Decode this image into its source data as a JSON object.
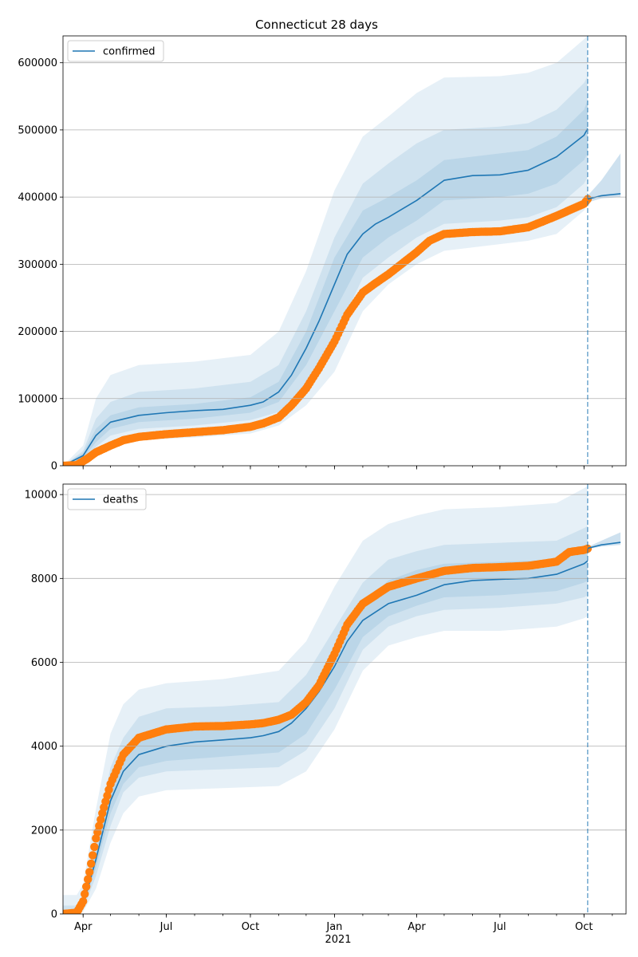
{
  "chart_data": [
    {
      "type": "line",
      "title": "Connecticut 28 days",
      "xlabel": "",
      "ylabel": "",
      "ylim": [
        0,
        640000
      ],
      "yticks": [
        0,
        100000,
        200000,
        300000,
        400000,
        500000,
        600000
      ],
      "ytick_labels": [
        "0",
        "100000",
        "200000",
        "300000",
        "400000",
        "500000",
        "600000"
      ],
      "grid": "horizontal",
      "legend": {
        "placement": "upper-left",
        "entries": [
          "confirmed"
        ]
      },
      "colors": {
        "model": "#1f77b4",
        "observed": "#ff7f0e"
      },
      "series": [
        {
          "name": "confirmed",
          "kind": "model-median",
          "x": [
            "2020-03-10",
            "2020-04-01",
            "2020-04-15",
            "2020-05-01",
            "2020-06-01",
            "2020-07-01",
            "2020-08-01",
            "2020-09-01",
            "2020-10-01",
            "2020-10-15",
            "2020-11-01",
            "2020-11-15",
            "2020-12-01",
            "2020-12-15",
            "2021-01-01",
            "2021-01-15",
            "2021-02-01",
            "2021-02-15",
            "2021-03-01",
            "2021-04-01",
            "2021-05-01",
            "2021-06-01",
            "2021-07-01",
            "2021-08-01",
            "2021-09-01",
            "2021-10-01",
            "2021-10-05"
          ],
          "y": [
            0,
            15000,
            45000,
            65000,
            75000,
            79000,
            82000,
            84000,
            90000,
            95000,
            110000,
            135000,
            175000,
            215000,
            270000,
            315000,
            345000,
            360000,
            370000,
            395000,
            425000,
            432000,
            433000,
            440000,
            460000,
            492000,
            502000
          ]
        },
        {
          "name": "",
          "kind": "observed",
          "x": [
            "2020-03-10",
            "2020-03-25",
            "2020-04-05",
            "2020-04-15",
            "2020-05-01",
            "2020-05-15",
            "2020-06-01",
            "2020-07-01",
            "2020-08-01",
            "2020-09-01",
            "2020-10-01",
            "2020-10-15",
            "2020-11-01",
            "2020-11-15",
            "2020-12-01",
            "2020-12-15",
            "2021-01-01",
            "2021-01-15",
            "2021-02-01",
            "2021-02-15",
            "2021-03-01",
            "2021-04-01",
            "2021-04-15",
            "2021-05-01",
            "2021-06-01",
            "2021-07-01",
            "2021-08-01",
            "2021-09-01",
            "2021-10-01",
            "2021-10-05"
          ],
          "y": [
            0,
            1000,
            10000,
            20000,
            30000,
            38000,
            43000,
            47000,
            50000,
            53000,
            58000,
            63000,
            72000,
            90000,
            115000,
            145000,
            185000,
            225000,
            258000,
            272000,
            285000,
            318000,
            335000,
            345000,
            348000,
            349000,
            355000,
            372000,
            390000,
            397000
          ]
        },
        {
          "name": "",
          "kind": "forecast",
          "x": [
            "2021-10-05",
            "2021-10-20",
            "2021-11-10"
          ],
          "y": [
            397000,
            402000,
            405000
          ]
        }
      ],
      "bands": [
        {
          "level": "outer",
          "x": [
            "2020-03-10",
            "2020-04-01",
            "2020-04-15",
            "2020-05-01",
            "2020-06-01",
            "2020-08-01",
            "2020-10-01",
            "2020-11-01",
            "2020-12-01",
            "2021-01-01",
            "2021-02-01",
            "2021-03-01",
            "2021-04-01",
            "2021-05-01",
            "2021-07-01",
            "2021-08-01",
            "2021-09-01",
            "2021-10-01",
            "2021-10-05"
          ],
          "low": [
            0,
            4000,
            18000,
            30000,
            38000,
            42000,
            48000,
            60000,
            90000,
            140000,
            230000,
            270000,
            300000,
            320000,
            330000,
            335000,
            345000,
            380000,
            390000
          ],
          "high": [
            0,
            30000,
            100000,
            135000,
            150000,
            155000,
            165000,
            200000,
            290000,
            410000,
            490000,
            520000,
            555000,
            578000,
            580000,
            585000,
            600000,
            635000,
            640000
          ]
        },
        {
          "level": "middle",
          "x": [
            "2020-03-10",
            "2020-04-01",
            "2020-04-15",
            "2020-05-01",
            "2020-06-01",
            "2020-08-01",
            "2020-10-01",
            "2020-11-01",
            "2020-12-01",
            "2021-01-01",
            "2021-02-01",
            "2021-03-01",
            "2021-04-01",
            "2021-05-01",
            "2021-07-01",
            "2021-08-01",
            "2021-09-01",
            "2021-10-01",
            "2021-10-05"
          ],
          "low": [
            0,
            8000,
            28000,
            45000,
            55000,
            60000,
            68000,
            80000,
            120000,
            190000,
            280000,
            310000,
            340000,
            360000,
            365000,
            370000,
            385000,
            420000,
            430000
          ],
          "high": [
            0,
            22000,
            70000,
            95000,
            110000,
            115000,
            125000,
            150000,
            230000,
            340000,
            420000,
            450000,
            480000,
            500000,
            505000,
            510000,
            530000,
            570000,
            580000
          ]
        },
        {
          "level": "inner",
          "x": [
            "2020-03-10",
            "2020-04-01",
            "2020-04-15",
            "2020-05-01",
            "2020-06-01",
            "2020-08-01",
            "2020-10-01",
            "2020-11-01",
            "2020-12-01",
            "2021-01-01",
            "2021-02-01",
            "2021-03-01",
            "2021-04-01",
            "2021-05-01",
            "2021-07-01",
            "2021-08-01",
            "2021-09-01",
            "2021-10-01",
            "2021-10-05"
          ],
          "low": [
            0,
            11000,
            35000,
            55000,
            65000,
            70000,
            79000,
            95000,
            150000,
            230000,
            310000,
            340000,
            365000,
            395000,
            400000,
            405000,
            420000,
            455000,
            465000
          ],
          "high": [
            0,
            19000,
            55000,
            75000,
            87000,
            92000,
            102000,
            125000,
            200000,
            310000,
            380000,
            400000,
            425000,
            455000,
            465000,
            470000,
            490000,
            530000,
            545000
          ]
        },
        {
          "level": "forecast",
          "x": [
            "2021-10-05",
            "2021-10-20",
            "2021-11-10"
          ],
          "low": [
            392000,
            398000,
            400000
          ],
          "high": [
            402000,
            425000,
            465000
          ]
        }
      ],
      "vline": "2021-10-05"
    },
    {
      "type": "line",
      "title": "",
      "xlabel": "",
      "ylabel": "",
      "ylim": [
        0,
        10250
      ],
      "yticks": [
        0,
        2000,
        4000,
        6000,
        8000,
        10000
      ],
      "ytick_labels": [
        "0",
        "2000",
        "4000",
        "6000",
        "8000",
        "10000"
      ],
      "grid": "horizontal",
      "legend": {
        "placement": "upper-left",
        "entries": [
          "deaths"
        ]
      },
      "colors": {
        "model": "#1f77b4",
        "observed": "#ff7f0e"
      },
      "xticks": [
        "2020-04-01",
        "2020-07-01",
        "2020-10-01",
        "2021-01-01",
        "2021-04-01",
        "2021-07-01",
        "2021-10-01"
      ],
      "xtick_labels": [
        "Apr",
        "Jul",
        "Oct",
        "Jan",
        "Apr",
        "Jul",
        "Oct"
      ],
      "xsub_label": "2021",
      "series": [
        {
          "name": "deaths",
          "kind": "model-median",
          "x": [
            "2020-03-10",
            "2020-03-25",
            "2020-04-01",
            "2020-04-15",
            "2020-05-01",
            "2020-05-15",
            "2020-06-01",
            "2020-07-01",
            "2020-08-01",
            "2020-09-01",
            "2020-10-01",
            "2020-10-15",
            "2020-11-01",
            "2020-11-15",
            "2020-12-01",
            "2020-12-15",
            "2021-01-01",
            "2021-01-15",
            "2021-02-01",
            "2021-03-01",
            "2021-04-01",
            "2021-05-01",
            "2021-06-01",
            "2021-07-01",
            "2021-08-01",
            "2021-09-01",
            "2021-10-01",
            "2021-10-05"
          ],
          "y": [
            0,
            20,
            200,
            1300,
            2700,
            3400,
            3800,
            4000,
            4100,
            4150,
            4200,
            4250,
            4350,
            4550,
            4900,
            5300,
            5900,
            6500,
            7000,
            7400,
            7600,
            7850,
            7950,
            7980,
            8000,
            8100,
            8350,
            8420
          ]
        },
        {
          "name": "",
          "kind": "observed",
          "x": [
            "2020-03-10",
            "2020-03-25",
            "2020-04-01",
            "2020-04-08",
            "2020-04-15",
            "2020-04-22",
            "2020-05-01",
            "2020-05-15",
            "2020-06-01",
            "2020-07-01",
            "2020-08-01",
            "2020-09-01",
            "2020-10-01",
            "2020-10-15",
            "2020-11-01",
            "2020-11-15",
            "2020-12-01",
            "2020-12-15",
            "2021-01-01",
            "2021-01-15",
            "2021-02-01",
            "2021-03-01",
            "2021-04-01",
            "2021-05-01",
            "2021-06-01",
            "2021-07-01",
            "2021-08-01",
            "2021-09-01",
            "2021-09-15",
            "2021-10-01",
            "2021-10-05"
          ],
          "y": [
            0,
            30,
            300,
            1000,
            1800,
            2400,
            3100,
            3800,
            4200,
            4400,
            4470,
            4480,
            4520,
            4550,
            4630,
            4750,
            5050,
            5450,
            6200,
            6900,
            7400,
            7800,
            8000,
            8180,
            8250,
            8270,
            8300,
            8400,
            8630,
            8680,
            8710
          ]
        },
        {
          "name": "",
          "kind": "forecast",
          "x": [
            "2021-10-05",
            "2021-10-20",
            "2021-11-10"
          ],
          "y": [
            8720,
            8800,
            8860
          ]
        }
      ],
      "bands": [
        {
          "level": "outer",
          "x": [
            "2020-03-10",
            "2020-03-25",
            "2020-04-01",
            "2020-04-15",
            "2020-05-01",
            "2020-05-15",
            "2020-06-01",
            "2020-07-01",
            "2020-09-01",
            "2020-11-01",
            "2020-12-01",
            "2021-01-01",
            "2021-02-01",
            "2021-03-01",
            "2021-04-01",
            "2021-05-01",
            "2021-07-01",
            "2021-09-01",
            "2021-10-01",
            "2021-10-05"
          ],
          "low": [
            0,
            0,
            50,
            600,
            1700,
            2400,
            2800,
            2950,
            3000,
            3050,
            3400,
            4400,
            5800,
            6400,
            6600,
            6750,
            6750,
            6850,
            7050,
            7100
          ],
          "high": [
            450,
            450,
            700,
            2500,
            4300,
            5000,
            5350,
            5500,
            5600,
            5800,
            6500,
            7800,
            8900,
            9300,
            9500,
            9650,
            9700,
            9800,
            10150,
            10200
          ]
        },
        {
          "level": "middle",
          "x": [
            "2020-03-10",
            "2020-03-25",
            "2020-04-01",
            "2020-04-15",
            "2020-05-01",
            "2020-05-15",
            "2020-06-01",
            "2020-07-01",
            "2020-09-01",
            "2020-11-01",
            "2020-12-01",
            "2021-01-01",
            "2021-02-01",
            "2021-03-01",
            "2021-04-01",
            "2021-05-01",
            "2021-07-01",
            "2021-09-01",
            "2021-10-01",
            "2021-10-05"
          ],
          "low": [
            0,
            0,
            100,
            900,
            2100,
            2900,
            3250,
            3400,
            3450,
            3500,
            3900,
            4900,
            6300,
            6850,
            7100,
            7250,
            7300,
            7400,
            7550,
            7600
          ],
          "high": [
            200,
            200,
            450,
            1800,
            3500,
            4200,
            4700,
            4900,
            4950,
            5050,
            5700,
            6800,
            7900,
            8450,
            8650,
            8800,
            8850,
            8900,
            9200,
            9250
          ]
        },
        {
          "level": "inner",
          "x": [
            "2020-03-10",
            "2020-03-25",
            "2020-04-01",
            "2020-04-15",
            "2020-05-01",
            "2020-05-15",
            "2020-06-01",
            "2020-07-01",
            "2020-09-01",
            "2020-11-01",
            "2020-12-01",
            "2021-01-01",
            "2021-02-01",
            "2021-03-01",
            "2021-04-01",
            "2021-05-01",
            "2021-07-01",
            "2021-09-01",
            "2021-10-01",
            "2021-10-05"
          ],
          "low": [
            0,
            0,
            150,
            1100,
            2400,
            3100,
            3500,
            3650,
            3750,
            3850,
            4300,
            5350,
            6600,
            7100,
            7350,
            7550,
            7600,
            7700,
            7900,
            7950
          ],
          "high": [
            100,
            100,
            300,
            1500,
            3000,
            3700,
            4150,
            4350,
            4400,
            4550,
            5100,
            6200,
            7400,
            7950,
            8200,
            8350,
            8400,
            8450,
            8750,
            8800
          ]
        },
        {
          "level": "forecast",
          "x": [
            "2021-10-05",
            "2021-10-20",
            "2021-11-10"
          ],
          "low": [
            8700,
            8760,
            8800
          ],
          "high": [
            8750,
            8900,
            9100
          ]
        }
      ],
      "vline": "2021-10-05"
    }
  ]
}
